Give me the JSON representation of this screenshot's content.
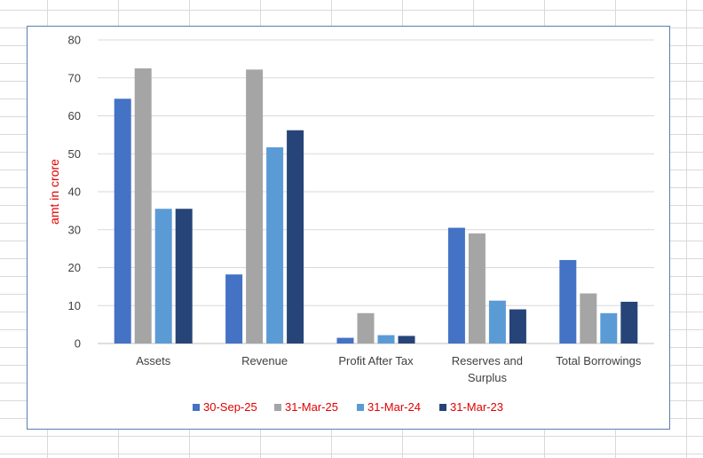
{
  "chart_data": {
    "type": "bar",
    "title": "",
    "xlabel": "",
    "ylabel": "amt in crore",
    "ylim": [
      0,
      80
    ],
    "yticks": [
      0,
      10,
      20,
      30,
      40,
      50,
      60,
      70,
      80
    ],
    "grid": true,
    "legend_position": "bottom",
    "categories": [
      [
        "Assets"
      ],
      [
        "Revenue"
      ],
      [
        "Profit After Tax"
      ],
      [
        "Reserves and",
        "Surplus"
      ],
      [
        "Total Borrowings"
      ]
    ],
    "series": [
      {
        "name": "30-Sep-25",
        "color": "#4472c4",
        "values": [
          64.5,
          18.2,
          1.5,
          30.5,
          22.0
        ]
      },
      {
        "name": "31-Mar-25",
        "color": "#a5a5a5",
        "values": [
          72.5,
          72.2,
          8.0,
          29.0,
          13.2
        ]
      },
      {
        "name": "31-Mar-24",
        "color": "#5b9bd5",
        "values": [
          35.5,
          51.7,
          2.2,
          11.3,
          8.0
        ]
      },
      {
        "name": "31-Mar-23",
        "color": "#264478",
        "values": [
          35.5,
          56.2,
          2.0,
          9.0,
          11.0
        ]
      }
    ]
  }
}
